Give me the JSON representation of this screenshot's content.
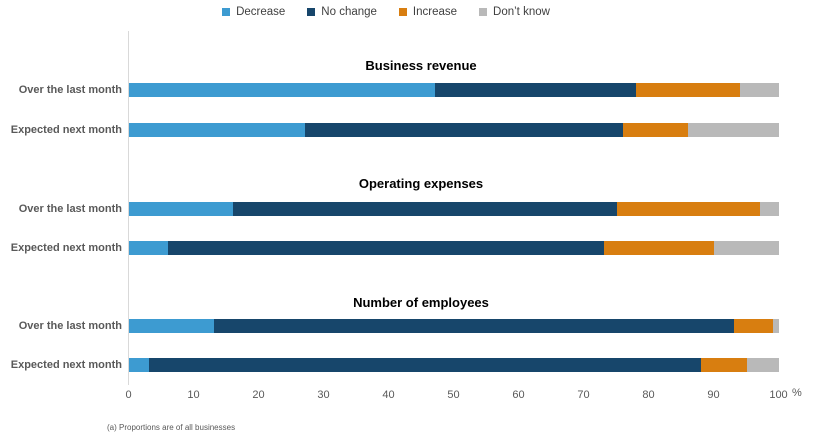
{
  "legend": [
    {
      "key": "decrease",
      "label": "Decrease",
      "color": "#3D9BD1"
    },
    {
      "key": "no-change",
      "label": "No change",
      "color": "#17466B"
    },
    {
      "key": "increase",
      "label": "Increase",
      "color": "#D87E10"
    },
    {
      "key": "dont-know",
      "label": "Don’t know",
      "color": "#B9B9B9"
    }
  ],
  "chart_data": {
    "type": "bar",
    "orientation": "horizontal",
    "stacked": true,
    "series_names": [
      "Decrease",
      "No change",
      "Increase",
      "Don’t know"
    ],
    "x_axis": {
      "min": 0,
      "max": 100,
      "ticks": [
        0,
        10,
        20,
        30,
        40,
        50,
        60,
        70,
        80,
        90,
        100
      ],
      "unit": "%"
    },
    "legend_position": "top",
    "grid": false,
    "groups": [
      {
        "title": "Business revenue",
        "rows": [
          {
            "label": "Over the last month",
            "values": [
              47,
              31,
              16,
              6
            ]
          },
          {
            "label": "Expected next month",
            "values": [
              27,
              49,
              10,
              14
            ]
          }
        ]
      },
      {
        "title": "Operating expenses",
        "rows": [
          {
            "label": "Over the last month",
            "values": [
              16,
              59,
              22,
              3
            ]
          },
          {
            "label": "Expected next month",
            "values": [
              6,
              67,
              17,
              10
            ]
          }
        ]
      },
      {
        "title": "Number of employees",
        "rows": [
          {
            "label": "Over the last month",
            "values": [
              13,
              80,
              6,
              1
            ]
          },
          {
            "label": "Expected next month",
            "values": [
              3,
              85,
              7,
              5
            ]
          }
        ]
      }
    ],
    "footnote": "(a) Proportions are of all businesses"
  }
}
